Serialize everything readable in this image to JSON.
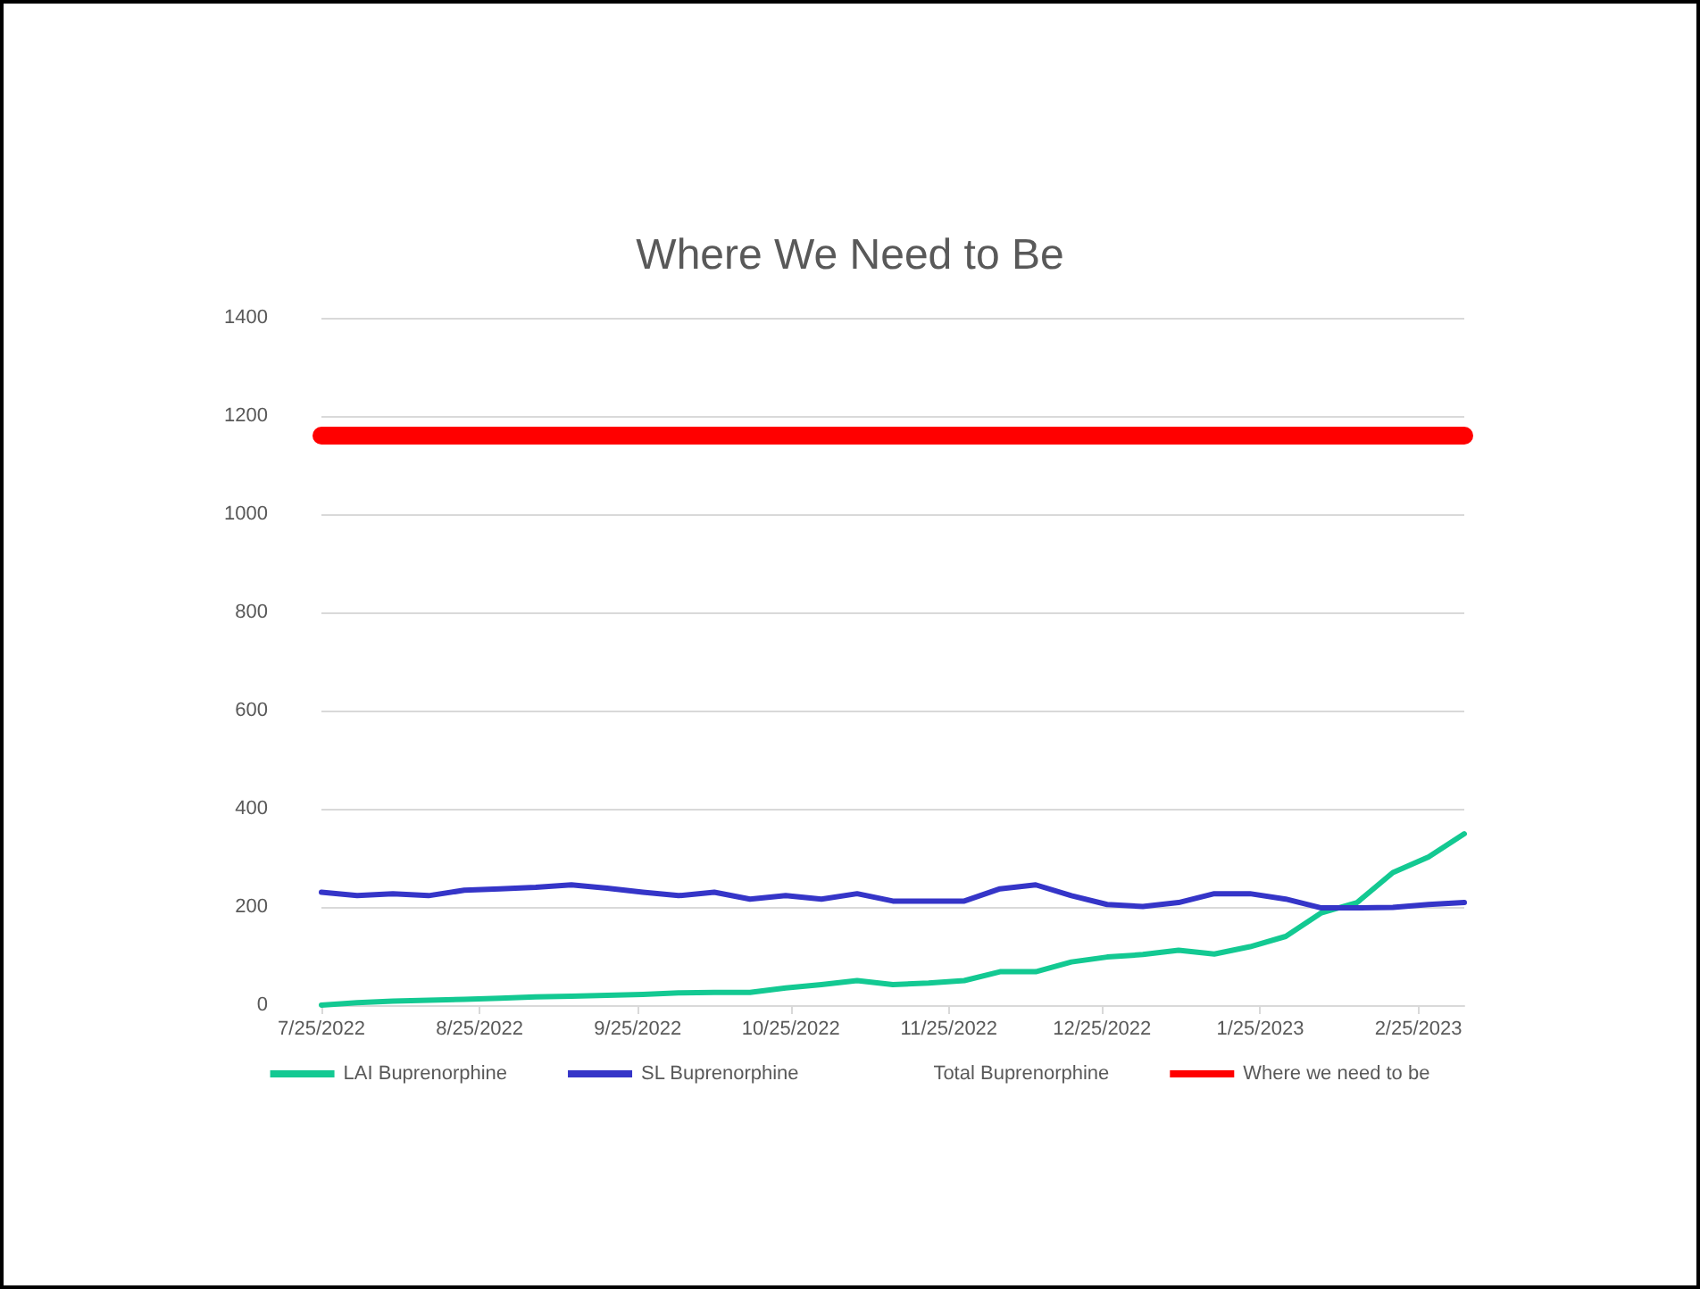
{
  "chart_data": {
    "type": "line",
    "title": "Where We Need to Be",
    "x": [
      "2022-07-25",
      "2022-08-01",
      "2022-08-08",
      "2022-08-15",
      "2022-08-22",
      "2022-08-29",
      "2022-09-05",
      "2022-09-12",
      "2022-09-19",
      "2022-09-26",
      "2022-10-03",
      "2022-10-10",
      "2022-10-17",
      "2022-10-24",
      "2022-10-31",
      "2022-11-07",
      "2022-11-14",
      "2022-11-21",
      "2022-11-28",
      "2022-12-05",
      "2022-12-12",
      "2022-12-19",
      "2022-12-26",
      "2023-01-02",
      "2023-01-09",
      "2023-01-16",
      "2023-01-23",
      "2023-01-30",
      "2023-02-06",
      "2023-02-13",
      "2023-02-20",
      "2023-02-27",
      "2023-03-06"
    ],
    "series": [
      {
        "name": "LAI Buprenorphine",
        "color": "#13c992",
        "values": [
          0,
          5,
          8,
          10,
          12,
          14,
          17,
          18,
          20,
          22,
          25,
          26,
          26,
          35,
          42,
          50,
          42,
          45,
          50,
          68,
          68,
          88,
          98,
          103,
          112,
          104,
          119,
          140,
          188,
          209,
          270,
          302,
          349
        ]
      },
      {
        "name": "SL Buprenorphine",
        "color": "#3535c8",
        "values": [
          230,
          223,
          227,
          223,
          234,
          237,
          240,
          245,
          238,
          230,
          223,
          230,
          216,
          223,
          216,
          227,
          212,
          212,
          212,
          237,
          245,
          223,
          205,
          201,
          209,
          227,
          227,
          216,
          198,
          198,
          199,
          205,
          209
        ]
      },
      {
        "name": "Total Buprenorphine",
        "values": [
          null,
          null,
          null,
          null,
          null,
          null,
          null,
          null,
          null,
          null,
          null,
          null,
          null,
          null,
          null,
          null,
          null,
          null,
          null,
          null,
          null,
          null,
          null,
          null,
          null,
          null,
          null,
          null,
          null,
          null,
          null,
          null,
          null
        ]
      },
      {
        "name": "Where we need to be",
        "color": "#ff0000",
        "values": [
          1160,
          1160,
          1160,
          1160,
          1160,
          1160,
          1160,
          1160,
          1160,
          1160,
          1160,
          1160,
          1160,
          1160,
          1160,
          1160,
          1160,
          1160,
          1160,
          1160,
          1160,
          1160,
          1160,
          1160,
          1160,
          1160,
          1160,
          1160,
          1160,
          1160,
          1160,
          1160,
          1160
        ]
      }
    ],
    "xlim": [
      "2022-07-25",
      "2023-03-06"
    ],
    "xticks": [
      {
        "value": "2022-07-25",
        "label": "7/25/2022"
      },
      {
        "value": "2022-08-25",
        "label": "8/25/2022"
      },
      {
        "value": "2022-09-25",
        "label": "9/25/2022"
      },
      {
        "value": "2022-10-25",
        "label": "10/25/2022"
      },
      {
        "value": "2022-11-25",
        "label": "11/25/2022"
      },
      {
        "value": "2022-12-25",
        "label": "12/25/2022"
      },
      {
        "value": "2023-01-25",
        "label": "1/25/2023"
      },
      {
        "value": "2023-02-25",
        "label": "2/25/2023"
      }
    ],
    "ylim": [
      0,
      1400
    ],
    "yticks": [
      0,
      200,
      400,
      600,
      800,
      1000,
      1200,
      1400
    ],
    "grid": "y",
    "legend": "bottom",
    "marker": "none",
    "line_style": "solid"
  }
}
